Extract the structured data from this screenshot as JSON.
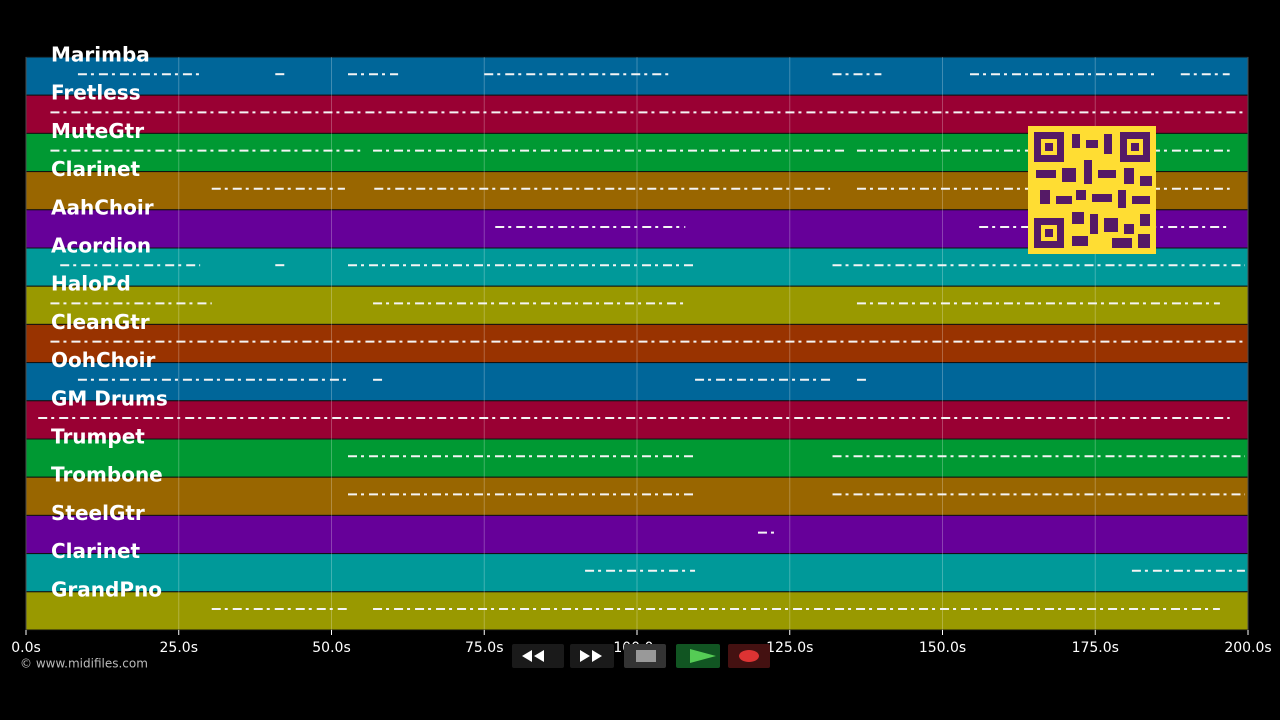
{
  "timeline": {
    "xlim": [
      0,
      200
    ],
    "xticks": [
      {
        "value": 0,
        "label": "0.0s"
      },
      {
        "value": 25,
        "label": "25.0s"
      },
      {
        "value": 50,
        "label": "50.0s"
      },
      {
        "value": 75,
        "label": "75.0s"
      },
      {
        "value": 100,
        "label": "100.0s"
      },
      {
        "value": 125,
        "label": "125.0s"
      },
      {
        "value": 150,
        "label": "150.0s"
      },
      {
        "value": 175,
        "label": "175.0s"
      },
      {
        "value": 200,
        "label": "200.0s"
      }
    ],
    "tracks": [
      {
        "name": "Marimba",
        "color": "#006699",
        "notes": [
          [
            8.5,
            28.5
          ],
          [
            40.8,
            42.4
          ],
          [
            52.7,
            60.9
          ],
          [
            75,
            105.7
          ],
          [
            132,
            140
          ],
          [
            154.5,
            184.8
          ],
          [
            189,
            197
          ]
        ]
      },
      {
        "name": "Fretless",
        "color": "#990033",
        "notes": [
          [
            4,
            199.5
          ]
        ]
      },
      {
        "name": "MuteGtr",
        "color": "#009933",
        "notes": [
          [
            4,
            54.7
          ],
          [
            56.8,
            134
          ],
          [
            136,
            197
          ]
        ]
      },
      {
        "name": "Clarinet",
        "color": "#996600",
        "notes": [
          [
            30.4,
            52.2
          ],
          [
            57,
            131.6
          ],
          [
            136,
            197
          ]
        ]
      },
      {
        "name": "AahChoir",
        "color": "#660099",
        "notes": [
          [
            76.8,
            107.9
          ],
          [
            156,
            197
          ]
        ]
      },
      {
        "name": "Acordion",
        "color": "#009999",
        "notes": [
          [
            5.6,
            28.5
          ],
          [
            40.8,
            42.4
          ],
          [
            52.7,
            109.5
          ],
          [
            132,
            199.5
          ]
        ]
      },
      {
        "name": "HaloPd",
        "color": "#999900",
        "notes": [
          [
            4,
            30.4
          ],
          [
            56.8,
            107.9
          ],
          [
            136,
            195.4
          ]
        ]
      },
      {
        "name": "CleanGtr",
        "color": "#993300",
        "notes": [
          [
            4,
            199.5
          ]
        ]
      },
      {
        "name": "OohChoir",
        "color": "#006699",
        "notes": [
          [
            8.5,
            52.7
          ],
          [
            56.8,
            58.9
          ],
          [
            109.5,
            132
          ],
          [
            136,
            138
          ]
        ]
      },
      {
        "name": "GM Drums",
        "color": "#990033",
        "notes": [
          [
            2,
            197
          ]
        ]
      },
      {
        "name": "Trumpet",
        "color": "#009933",
        "notes": [
          [
            52.7,
            109.5
          ],
          [
            132,
            199.5
          ]
        ]
      },
      {
        "name": "Trombone",
        "color": "#996600",
        "notes": [
          [
            52.7,
            109.5
          ],
          [
            132,
            199.5
          ]
        ]
      },
      {
        "name": "SteelGtr",
        "color": "#660099",
        "notes": [
          [
            119.8,
            123
          ]
        ]
      },
      {
        "name": "Clarinet",
        "color": "#009999",
        "notes": [
          [
            91.5,
            109.5
          ],
          [
            181,
            199.5
          ]
        ]
      },
      {
        "name": "GrandPno",
        "color": "#999900",
        "notes": [
          [
            30.4,
            52.7
          ],
          [
            56.8,
            195.4
          ]
        ]
      }
    ]
  },
  "footer": {
    "credit": "© www.midifiles.com"
  }
}
